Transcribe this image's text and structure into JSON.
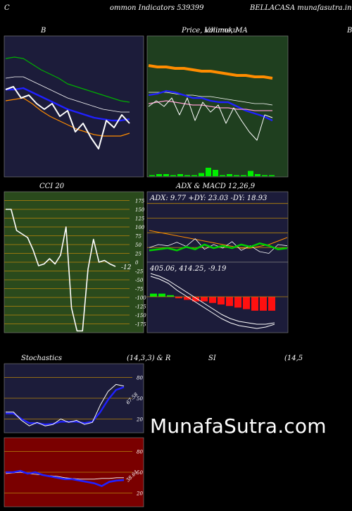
{
  "header": {
    "left_letter": "C",
    "title": "ommon  Indicators 539399",
    "site": "BELLACASA munafasutra.in"
  },
  "labels": {
    "bb": "B",
    "price_title": "Price,  Volume,  MA",
    "price_overlap": "Ichimoku",
    "right_letter": "B",
    "cci": "CCI 20",
    "adx_macd": "ADX  & MACD 12,26,9",
    "adx_values": "ADX: 9.77 +DY: 23.03 -DY: 18.93",
    "macd_values": "405.06,  414.25,  -9.19",
    "stoch_left": "Stochastics",
    "stoch_mid": "(14,3,3) & R",
    "rsi": "SI",
    "rsi_params": "(14,5",
    "stoch_value": "67.58",
    "rsi_value": "38.64",
    "watermark": "MunafaSutra.com"
  },
  "colors": {
    "navy_bg": "#1c1c3a",
    "green_bg": "#1f3f1f",
    "cci_bg": "#2a4a1c",
    "rsi_bg": "#7a0000",
    "orange": "#ff8c00",
    "blue": "#2020ff",
    "green_line": "#00cc00"
  },
  "chart_data": [
    {
      "type": "line",
      "name": "bollinger",
      "series": [
        {
          "values": [
            84,
            85,
            84,
            80,
            76,
            73,
            70,
            66,
            64,
            62,
            60,
            58,
            56,
            54,
            53
          ]
        },
        {
          "values": [
            70,
            71,
            71,
            68,
            65,
            62,
            59,
            56,
            54,
            52,
            50,
            48,
            47,
            46,
            46
          ]
        },
        {
          "values": [
            62,
            62,
            63,
            60,
            57,
            54,
            51,
            48,
            46,
            44,
            42,
            41,
            40,
            40,
            41
          ]
        },
        {
          "values": [
            54,
            55,
            56,
            52,
            47,
            43,
            40,
            37,
            34,
            32,
            30,
            29,
            29,
            29,
            31
          ]
        },
        {
          "values": [
            62,
            64,
            56,
            58,
            52,
            48,
            52,
            43,
            47,
            32,
            38,
            28,
            20,
            40,
            35,
            44,
            38
          ]
        }
      ]
    },
    {
      "type": "line",
      "name": "price-volume-ma",
      "series": [
        {
          "values": [
            59,
            58,
            58,
            57,
            57,
            56,
            55,
            55,
            54,
            53,
            52,
            52,
            51,
            51,
            50
          ]
        },
        {
          "values": [
            40,
            40,
            40,
            39,
            38,
            38,
            37,
            37,
            36,
            35,
            34,
            33,
            32,
            32,
            31
          ]
        },
        {
          "values": [
            38,
            39,
            41,
            40,
            38,
            36,
            36,
            34,
            33,
            33,
            30,
            27,
            25,
            23,
            20
          ]
        },
        {
          "values": [
            32,
            33,
            34,
            33,
            32,
            31,
            31,
            30,
            29,
            29,
            28,
            28,
            27,
            27,
            27
          ]
        },
        {
          "values": [
            30,
            34,
            30,
            36,
            24,
            36,
            20,
            33,
            26,
            31,
            18,
            29,
            20,
            12,
            6,
            24,
            22
          ]
        }
      ],
      "volume": [
        1,
        2,
        2,
        1,
        2,
        1,
        1,
        3,
        8,
        6,
        1,
        2,
        1,
        1,
        5,
        2,
        1,
        1
      ]
    },
    {
      "type": "line",
      "name": "cci",
      "yticks": [
        175,
        150,
        125,
        100,
        75,
        50,
        25,
        0,
        -25,
        -50,
        -75,
        -100,
        -125,
        -150,
        -175
      ],
      "values": [
        150,
        150,
        90,
        80,
        70,
        35,
        -10,
        -5,
        10,
        -5,
        20,
        100,
        -130,
        -195,
        -195,
        -20,
        65,
        0,
        5,
        -5,
        -12
      ],
      "last_label": "-12"
    },
    {
      "type": "line",
      "name": "adx",
      "yticks": [
        100,
        75,
        50,
        25
      ],
      "series": [
        {
          "values": [
            18,
            17,
            16,
            15,
            14,
            13,
            12,
            11,
            10,
            9,
            8,
            8,
            9,
            10,
            12,
            14
          ]
        },
        {
          "values": [
            25,
            30,
            28,
            34,
            27,
            40,
            22,
            30,
            24,
            35,
            20,
            28,
            18,
            15,
            30,
            28
          ]
        },
        {
          "values": [
            20,
            22,
            24,
            20,
            26,
            22,
            30,
            24,
            28,
            24,
            30,
            26,
            32,
            28,
            22,
            24
          ]
        }
      ]
    },
    {
      "type": "bar",
      "name": "macd-histogram",
      "values": [
        2,
        2,
        1,
        -1,
        -2,
        -3,
        -3,
        -4,
        -5,
        -6,
        -7,
        -8,
        -9,
        -9,
        -9
      ]
    },
    {
      "type": "line",
      "name": "stochastics",
      "yticks": [
        80,
        50,
        20
      ],
      "series": [
        {
          "values": [
            30,
            30,
            18,
            10,
            15,
            10,
            12,
            20,
            15,
            18,
            12,
            15,
            40,
            60,
            70,
            67.58
          ]
        },
        {
          "values": [
            28,
            28,
            20,
            14,
            14,
            12,
            13,
            16,
            16,
            16,
            14,
            16,
            30,
            48,
            62,
            66
          ]
        }
      ],
      "last_label": "67.58"
    },
    {
      "type": "line",
      "name": "rsi",
      "yticks": [
        80,
        50,
        20
      ],
      "series": [
        {
          "values": [
            50,
            50,
            52,
            48,
            50,
            46,
            44,
            42,
            40,
            40,
            38,
            36,
            34,
            30,
            36,
            38,
            38.64
          ]
        },
        {
          "values": [
            48,
            49,
            50,
            48,
            47,
            46,
            45,
            44,
            42,
            41,
            40,
            40,
            40,
            41,
            41,
            42,
            42
          ]
        }
      ],
      "last_label": "38.64"
    }
  ]
}
